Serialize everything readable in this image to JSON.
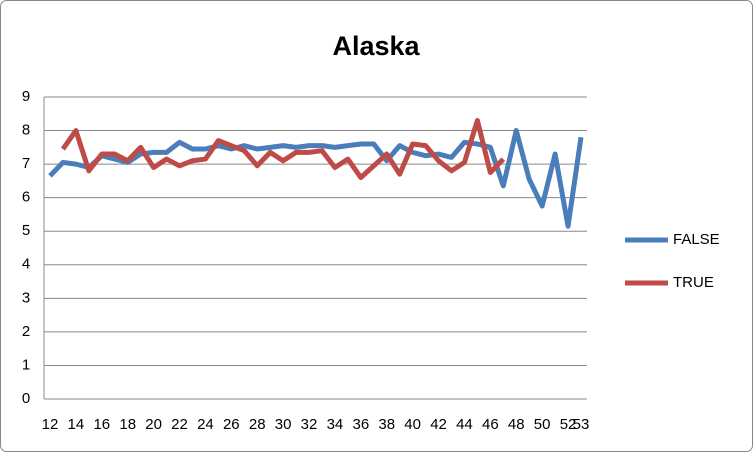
{
  "chart_data": {
    "type": "line",
    "title": "Alaska",
    "categories": [
      "12",
      null,
      "14",
      null,
      "16",
      null,
      "18",
      null,
      "20",
      null,
      "22",
      null,
      "24",
      null,
      "26",
      null,
      "28",
      null,
      "30",
      null,
      "32",
      null,
      "34",
      null,
      "36",
      null,
      "38",
      null,
      "40",
      null,
      "42",
      null,
      "44",
      null,
      "46",
      null,
      "48",
      null,
      "50",
      null,
      "52",
      "53"
    ],
    "series": [
      {
        "name": "FALSE",
        "color": "#4a7ebb",
        "values": [
          6.65,
          7.05,
          7.0,
          6.9,
          7.25,
          7.15,
          7.05,
          7.3,
          7.35,
          7.35,
          7.65,
          7.45,
          7.45,
          7.55,
          7.45,
          7.55,
          7.45,
          7.5,
          7.55,
          7.5,
          7.55,
          7.55,
          7.5,
          7.55,
          7.6,
          7.6,
          7.1,
          7.55,
          7.35,
          7.25,
          7.3,
          7.2,
          7.65,
          7.6,
          7.5,
          6.35,
          8.0,
          6.55,
          5.75,
          7.3,
          5.15,
          7.8
        ]
      },
      {
        "name": "TRUE",
        "color": "#be4b48",
        "values": [
          null,
          7.45,
          8.0,
          6.8,
          7.3,
          7.3,
          7.1,
          7.5,
          6.9,
          7.15,
          6.95,
          7.1,
          7.15,
          7.7,
          7.55,
          7.4,
          6.95,
          7.35,
          7.1,
          7.35,
          7.35,
          7.4,
          6.9,
          7.15,
          6.6,
          6.95,
          7.3,
          6.7,
          7.6,
          7.55,
          7.1,
          6.8,
          7.05,
          8.3,
          6.75,
          7.15,
          null,
          null,
          null,
          null,
          null,
          null
        ]
      }
    ],
    "ylim": [
      0,
      9
    ],
    "yticks": [
      0,
      1,
      2,
      3,
      4,
      5,
      6,
      7,
      8,
      9
    ],
    "grid": true,
    "legend": "right"
  }
}
